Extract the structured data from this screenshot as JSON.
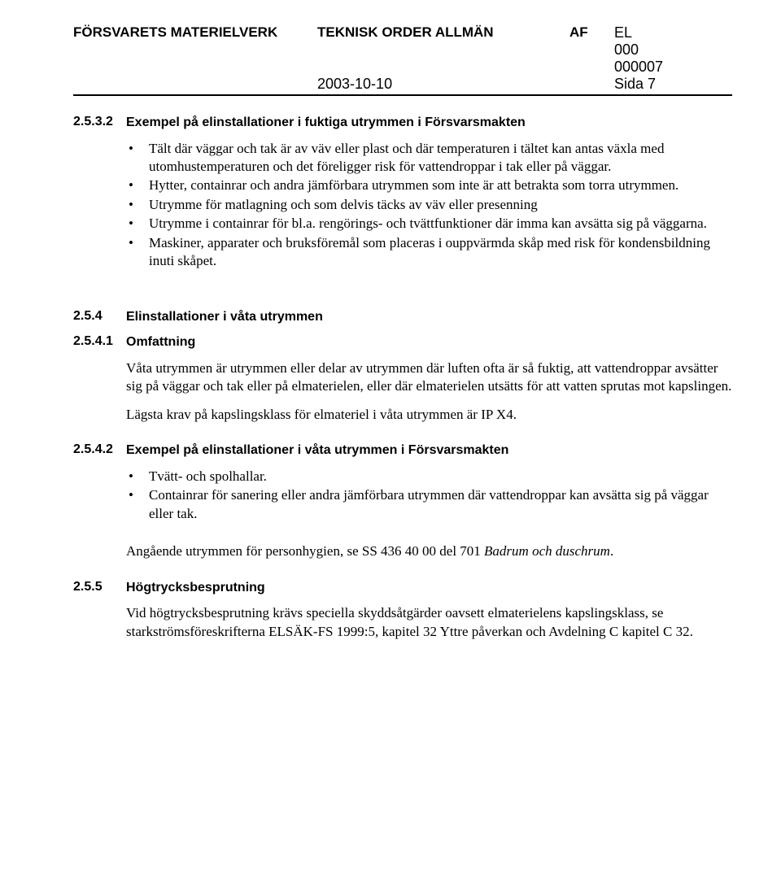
{
  "header": {
    "org": "FÖRSVARETS MATERIELVERK",
    "title": "TEKNISK ORDER ALLMÄN",
    "code1": "AF",
    "code2": "EL",
    "num1": "000",
    "num2": "000007",
    "date": "2003-10-10",
    "page": "Sida 7"
  },
  "s2532": {
    "num": "2.5.3.2",
    "heading": "Exempel på elinstallationer i fuktiga utrymmen i Försvarsmakten",
    "b1": "Tält där väggar och tak är av väv eller plast och där temperaturen i tältet kan antas växla med utomhustemperaturen och det föreligger risk för vattendroppar i tak eller på väggar.",
    "b2": "Hytter, containrar och andra jämförbara utrymmen som inte är att betrakta som torra utrymmen.",
    "b3": "Utrymme för matlagning och som delvis täcks av väv eller presenning",
    "b4": "Utrymme i containrar för bl.a. rengörings- och tvättfunktioner där imma kan avsätta sig på väggarna.",
    "b5": "Maskiner, apparater och bruksföremål som placeras i ouppvärmda skåp med risk för kondensbildning inuti skåpet."
  },
  "s254": {
    "num": "2.5.4",
    "heading": "Elinstallationer i våta utrymmen"
  },
  "s2541": {
    "num": "2.5.4.1",
    "heading": "Omfattning",
    "p1": "Våta utrymmen är utrymmen eller delar av utrymmen där luften ofta är så fuktig, att vattendroppar avsätter sig på väggar och tak eller på elmaterielen, eller där elmaterielen utsätts för att vatten sprutas mot kapslingen.",
    "p2": "Lägsta krav på kapslingsklass för elmateriel i våta utrymmen är IP X4."
  },
  "s2542": {
    "num": "2.5.4.2",
    "heading": "Exempel på elinstallationer i våta utrymmen i Försvarsmakten",
    "b1": "Tvätt- och spolhallar.",
    "b2": "Containrar för sanering eller andra jämförbara utrymmen där vattendroppar kan avsätta sig på väggar eller tak.",
    "p1a": "Angående utrymmen för personhygien, se SS 436 40 00 del 701 ",
    "p1b": "Badrum och duschrum",
    "p1c": "."
  },
  "s255": {
    "num": "2.5.5",
    "heading": "Högtrycksbesprutning",
    "p1": "Vid högtrycksbesprutning krävs speciella skyddsåtgärder oavsett elmaterielens kapslingsklass, se starkströmsföreskrifterna ELSÄK-FS 1999:5, kapitel 32 Yttre påverkan och Avdelning C kapitel C 32."
  }
}
